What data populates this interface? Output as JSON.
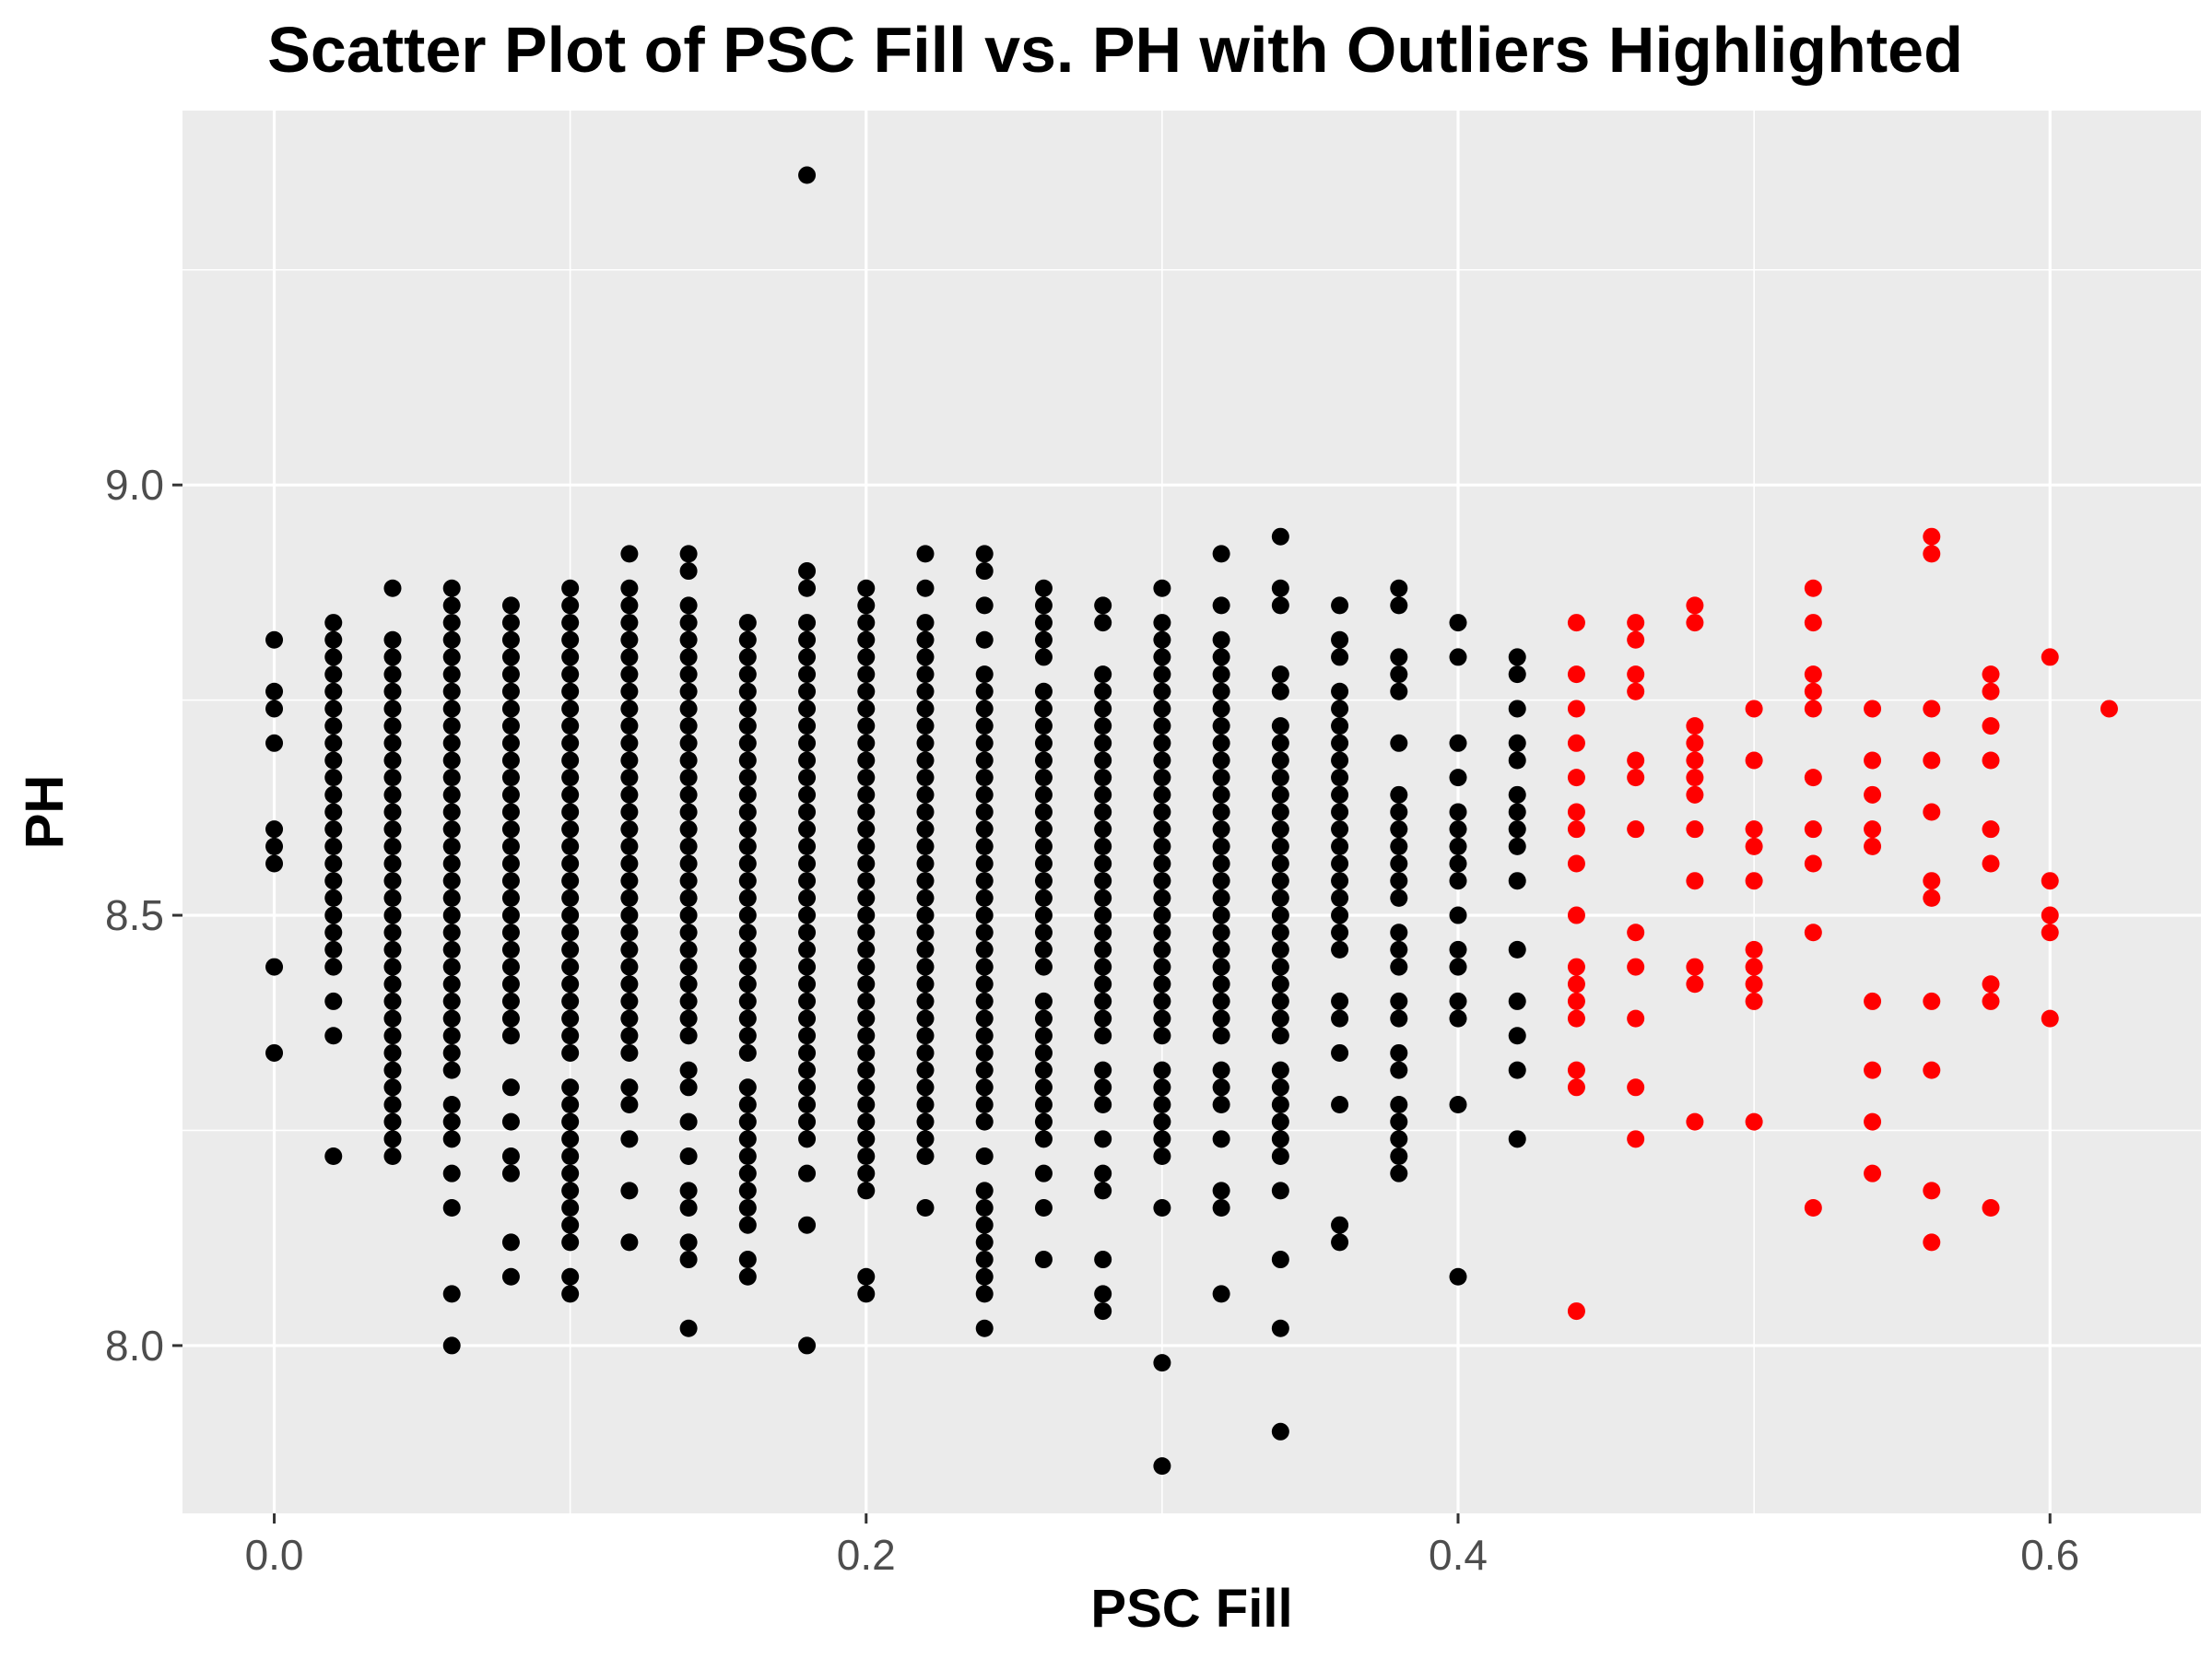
{
  "chart_data": {
    "type": "scatter",
    "title": "Scatter Plot of PSC Fill vs. PH with Outliers Highlighted",
    "xlabel": "PSC Fill",
    "ylabel": "PH",
    "xlim": [
      -0.031,
      0.651
    ],
    "ylim": [
      7.805,
      9.435
    ],
    "x_ticks": [
      0.0,
      0.2,
      0.4,
      0.6
    ],
    "x_tick_labels": [
      "0.0",
      "0.2",
      "0.4",
      "0.6"
    ],
    "y_ticks": [
      8.0,
      8.5,
      9.0
    ],
    "y_tick_labels": [
      "8.0",
      "8.5",
      "9.0"
    ],
    "grid": true,
    "colors": {
      "panel": "#ebebeb",
      "grid": "#ffffff",
      "normal": "#000000",
      "outlier": "#ff0000",
      "tick": "#333333"
    },
    "series": [
      {
        "name": "normal",
        "color": "#000000",
        "columns": [
          {
            "x": 0.0,
            "y": [
              8.82,
              8.76,
              8.74,
              8.7,
              8.6,
              8.58,
              8.56,
              8.44,
              8.34
            ]
          },
          {
            "x": 0.02,
            "ranges": [
              [
                8.44,
                8.84
              ]
            ],
            "y": [
              8.4,
              8.36,
              8.22
            ]
          },
          {
            "x": 0.04,
            "ranges": [
              [
                8.22,
                8.82
              ]
            ],
            "y": [
              8.88
            ]
          },
          {
            "x": 0.06,
            "ranges": [
              [
                8.32,
                8.88
              ]
            ],
            "y": [
              8.28,
              8.26,
              8.24,
              8.2,
              8.16,
              8.06,
              8.0
            ]
          },
          {
            "x": 0.08,
            "ranges": [
              [
                8.36,
                8.86
              ]
            ],
            "y": [
              8.3,
              8.26,
              8.22,
              8.2,
              8.12,
              8.08
            ]
          },
          {
            "x": 0.1,
            "ranges": [
              [
                8.34,
                8.88
              ],
              [
                8.12,
                8.3
              ]
            ],
            "y": [
              8.08,
              8.06
            ]
          },
          {
            "x": 0.12,
            "ranges": [
              [
                8.34,
                8.88
              ]
            ],
            "y": [
              8.92,
              8.3,
              8.28,
              8.24,
              8.18,
              8.12
            ]
          },
          {
            "x": 0.14,
            "ranges": [
              [
                8.36,
                8.86
              ]
            ],
            "y": [
              8.92,
              8.9,
              8.32,
              8.3,
              8.26,
              8.22,
              8.18,
              8.16,
              8.12,
              8.1,
              8.02
            ]
          },
          {
            "x": 0.16,
            "ranges": [
              [
                8.34,
                8.84
              ],
              [
                8.16,
                8.3
              ]
            ],
            "y": [
              8.14,
              8.1,
              8.08
            ]
          },
          {
            "x": 0.18,
            "ranges": [
              [
                8.24,
                8.84
              ]
            ],
            "y": [
              9.36,
              8.9,
              8.88,
              8.2,
              8.14,
              8.0
            ]
          },
          {
            "x": 0.2,
            "ranges": [
              [
                8.18,
                8.88
              ]
            ],
            "y": [
              8.08,
              8.06
            ]
          },
          {
            "x": 0.22,
            "ranges": [
              [
                8.22,
                8.84
              ]
            ],
            "y": [
              8.92,
              8.88,
              8.16
            ]
          },
          {
            "x": 0.24,
            "ranges": [
              [
                8.26,
                8.78
              ]
            ],
            "y": [
              8.92,
              8.9,
              8.86,
              8.82,
              8.22,
              8.18,
              8.16,
              8.14,
              8.12,
              8.1,
              8.08,
              8.06,
              8.02
            ]
          },
          {
            "x": 0.26,
            "ranges": [
              [
                8.44,
                8.76
              ],
              [
                8.24,
                8.4
              ]
            ],
            "y": [
              8.88,
              8.86,
              8.84,
              8.82,
              8.8,
              8.2,
              8.16,
              8.1
            ]
          },
          {
            "x": 0.28,
            "ranges": [
              [
                8.36,
                8.78
              ]
            ],
            "y": [
              8.86,
              8.84,
              8.32,
              8.3,
              8.28,
              8.24,
              8.2,
              8.18,
              8.1,
              8.06,
              8.04
            ]
          },
          {
            "x": 0.3,
            "ranges": [
              [
                8.36,
                8.84
              ]
            ],
            "y": [
              8.88,
              8.32,
              8.3,
              8.28,
              8.26,
              8.24,
              8.22,
              8.16,
              7.98,
              7.86
            ]
          },
          {
            "x": 0.32,
            "ranges": [
              [
                8.36,
                8.82
              ]
            ],
            "y": [
              8.92,
              8.86,
              8.32,
              8.3,
              8.28,
              8.24,
              8.18,
              8.16,
              8.06
            ]
          },
          {
            "x": 0.34,
            "ranges": [
              [
                8.36,
                8.72
              ]
            ],
            "y": [
              8.94,
              8.88,
              8.86,
              8.78,
              8.76,
              8.32,
              8.3,
              8.28,
              8.26,
              8.24,
              8.22,
              8.18,
              8.1,
              8.02,
              7.9
            ]
          },
          {
            "x": 0.36,
            "ranges": [
              [
                8.6,
                8.76
              ],
              [
                8.46,
                8.58
              ]
            ],
            "y": [
              8.86,
              8.82,
              8.8,
              8.4,
              8.38,
              8.34,
              8.28,
              8.14,
              8.12
            ]
          },
          {
            "x": 0.38,
            "ranges": [
              [
                8.52,
                8.64
              ],
              [
                8.2,
                8.28
              ]
            ],
            "y": [
              8.88,
              8.86,
              8.8,
              8.78,
              8.76,
              8.7,
              8.48,
              8.46,
              8.44,
              8.4,
              8.38,
              8.34,
              8.32
            ]
          },
          {
            "x": 0.4,
            "y": [
              8.84,
              8.8,
              8.7,
              8.66,
              8.62,
              8.6,
              8.58,
              8.56,
              8.54,
              8.5,
              8.46,
              8.44,
              8.4,
              8.38,
              8.28,
              8.08
            ]
          },
          {
            "x": 0.42,
            "y": [
              8.8,
              8.78,
              8.74,
              8.7,
              8.68,
              8.64,
              8.62,
              8.6,
              8.58,
              8.54,
              8.46,
              8.4,
              8.36,
              8.32,
              8.24
            ]
          }
        ]
      },
      {
        "name": "outlier",
        "color": "#ff0000",
        "columns": [
          {
            "x": 0.44,
            "y": [
              8.84,
              8.78,
              8.74,
              8.7,
              8.66,
              8.62,
              8.6,
              8.56,
              8.5,
              8.44,
              8.42,
              8.4,
              8.38,
              8.32,
              8.3,
              8.04
            ]
          },
          {
            "x": 0.46,
            "y": [
              8.84,
              8.82,
              8.78,
              8.76,
              8.68,
              8.66,
              8.6,
              8.48,
              8.44,
              8.38,
              8.3,
              8.24
            ]
          },
          {
            "x": 0.48,
            "y": [
              8.86,
              8.84,
              8.72,
              8.7,
              8.68,
              8.66,
              8.64,
              8.6,
              8.54,
              8.44,
              8.42,
              8.26
            ]
          },
          {
            "x": 0.5,
            "y": [
              8.74,
              8.68,
              8.6,
              8.58,
              8.54,
              8.46,
              8.44,
              8.42,
              8.4,
              8.26
            ]
          },
          {
            "x": 0.52,
            "y": [
              8.88,
              8.84,
              8.78,
              8.76,
              8.74,
              8.66,
              8.6,
              8.56,
              8.48,
              8.16
            ]
          },
          {
            "x": 0.54,
            "y": [
              8.74,
              8.68,
              8.64,
              8.6,
              8.58,
              8.4,
              8.32,
              8.26,
              8.2
            ]
          },
          {
            "x": 0.56,
            "y": [
              8.94,
              8.92,
              8.74,
              8.68,
              8.62,
              8.54,
              8.52,
              8.4,
              8.32,
              8.18,
              8.12
            ]
          },
          {
            "x": 0.58,
            "y": [
              8.78,
              8.76,
              8.72,
              8.68,
              8.6,
              8.56,
              8.42,
              8.4,
              8.16
            ]
          },
          {
            "x": 0.6,
            "y": [
              8.8,
              8.54,
              8.5,
              8.48,
              8.38
            ]
          },
          {
            "x": 0.62,
            "y": [
              8.74
            ]
          }
        ]
      }
    ]
  }
}
